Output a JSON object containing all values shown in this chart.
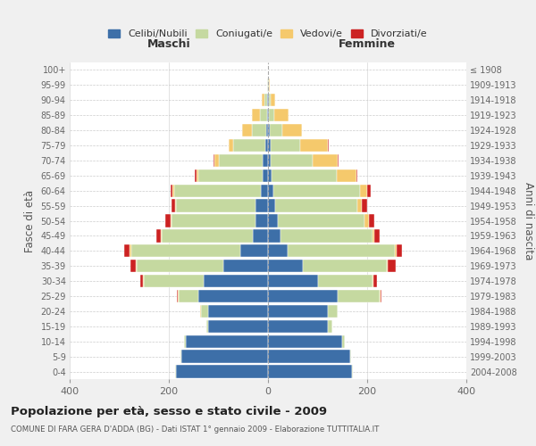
{
  "age_groups": [
    "0-4",
    "5-9",
    "10-14",
    "15-19",
    "20-24",
    "25-29",
    "30-34",
    "35-39",
    "40-44",
    "45-49",
    "50-54",
    "55-59",
    "60-64",
    "65-69",
    "70-74",
    "75-79",
    "80-84",
    "85-89",
    "90-94",
    "95-99",
    "100+"
  ],
  "birth_years": [
    "2004-2008",
    "1999-2003",
    "1994-1998",
    "1989-1993",
    "1984-1988",
    "1979-1983",
    "1974-1978",
    "1969-1973",
    "1964-1968",
    "1959-1963",
    "1954-1958",
    "1949-1953",
    "1944-1948",
    "1939-1943",
    "1934-1938",
    "1929-1933",
    "1924-1928",
    "1919-1923",
    "1914-1918",
    "1909-1913",
    "≤ 1908"
  ],
  "male": {
    "celibi": [
      185,
      175,
      165,
      120,
      120,
      140,
      130,
      90,
      55,
      30,
      25,
      25,
      15,
      10,
      10,
      5,
      3,
      2,
      2,
      0,
      0
    ],
    "coniugati": [
      2,
      2,
      5,
      5,
      15,
      40,
      120,
      175,
      220,
      185,
      170,
      160,
      175,
      130,
      90,
      65,
      30,
      15,
      5,
      1,
      0
    ],
    "vedovi": [
      0,
      0,
      0,
      0,
      2,
      2,
      2,
      2,
      5,
      2,
      2,
      2,
      2,
      5,
      8,
      10,
      20,
      15,
      5,
      1,
      0
    ],
    "divorziati": [
      0,
      0,
      0,
      0,
      0,
      2,
      5,
      10,
      10,
      8,
      10,
      8,
      5,
      2,
      2,
      0,
      0,
      0,
      0,
      0,
      0
    ]
  },
  "female": {
    "nubili": [
      170,
      165,
      150,
      120,
      120,
      140,
      100,
      70,
      40,
      25,
      20,
      15,
      10,
      8,
      5,
      5,
      3,
      2,
      2,
      0,
      0
    ],
    "coniugate": [
      2,
      2,
      5,
      10,
      20,
      85,
      110,
      170,
      215,
      185,
      175,
      165,
      175,
      130,
      85,
      60,
      25,
      10,
      3,
      1,
      0
    ],
    "vedove": [
      0,
      0,
      0,
      0,
      0,
      2,
      2,
      2,
      5,
      5,
      8,
      10,
      15,
      40,
      50,
      55,
      40,
      30,
      10,
      2,
      0
    ],
    "divorziate": [
      0,
      0,
      0,
      0,
      0,
      2,
      8,
      15,
      10,
      10,
      12,
      10,
      8,
      2,
      2,
      2,
      0,
      0,
      0,
      0,
      0
    ]
  },
  "colors": {
    "celibi": "#3d6fa8",
    "coniugati": "#c5d9a0",
    "vedovi": "#f5c96c",
    "divorziati": "#cc2222"
  },
  "legend_labels": [
    "Celibi/Nubili",
    "Coniugati/e",
    "Vedovi/e",
    "Divorziati/e"
  ],
  "title": "Popolazione per età, sesso e stato civile - 2009",
  "subtitle": "COMUNE DI FARA GERA D'ADDA (BG) - Dati ISTAT 1° gennaio 2009 - Elaborazione TUTTITALIA.IT",
  "label_maschi": "Maschi",
  "label_femmine": "Femmine",
  "ylabel_left": "Fasce di età",
  "ylabel_right": "Anni di nascita",
  "xlim": 400,
  "bg_color": "#f0f0f0",
  "plot_bg_color": "#ffffff"
}
